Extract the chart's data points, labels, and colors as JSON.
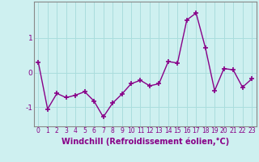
{
  "x": [
    0,
    1,
    2,
    3,
    4,
    5,
    6,
    7,
    8,
    9,
    10,
    11,
    12,
    13,
    14,
    15,
    16,
    17,
    18,
    19,
    20,
    21,
    22,
    23
  ],
  "y": [
    0.3,
    -1.05,
    -0.6,
    -0.72,
    -0.65,
    -0.55,
    -0.82,
    -1.28,
    -0.88,
    -0.62,
    -0.32,
    -0.22,
    -0.38,
    -0.32,
    0.32,
    0.28,
    1.52,
    1.72,
    0.72,
    -0.52,
    0.12,
    0.08,
    -0.42,
    -0.18
  ],
  "line_color": "#880088",
  "marker": "+",
  "markersize": 4,
  "markeredgewidth": 1.2,
  "linewidth": 1.0,
  "xlabel": "Windchill (Refroidissement éolien,°C)",
  "xlim": [
    -0.5,
    23.5
  ],
  "ylim": [
    -1.55,
    2.05
  ],
  "yticks": [
    -1,
    0,
    1
  ],
  "xticks": [
    0,
    1,
    2,
    3,
    4,
    5,
    6,
    7,
    8,
    9,
    10,
    11,
    12,
    13,
    14,
    15,
    16,
    17,
    18,
    19,
    20,
    21,
    22,
    23
  ],
  "bg_color": "#cef0f0",
  "grid_color": "#aadddd",
  "tick_label_fontsize": 5.5,
  "xlabel_fontsize": 7
}
